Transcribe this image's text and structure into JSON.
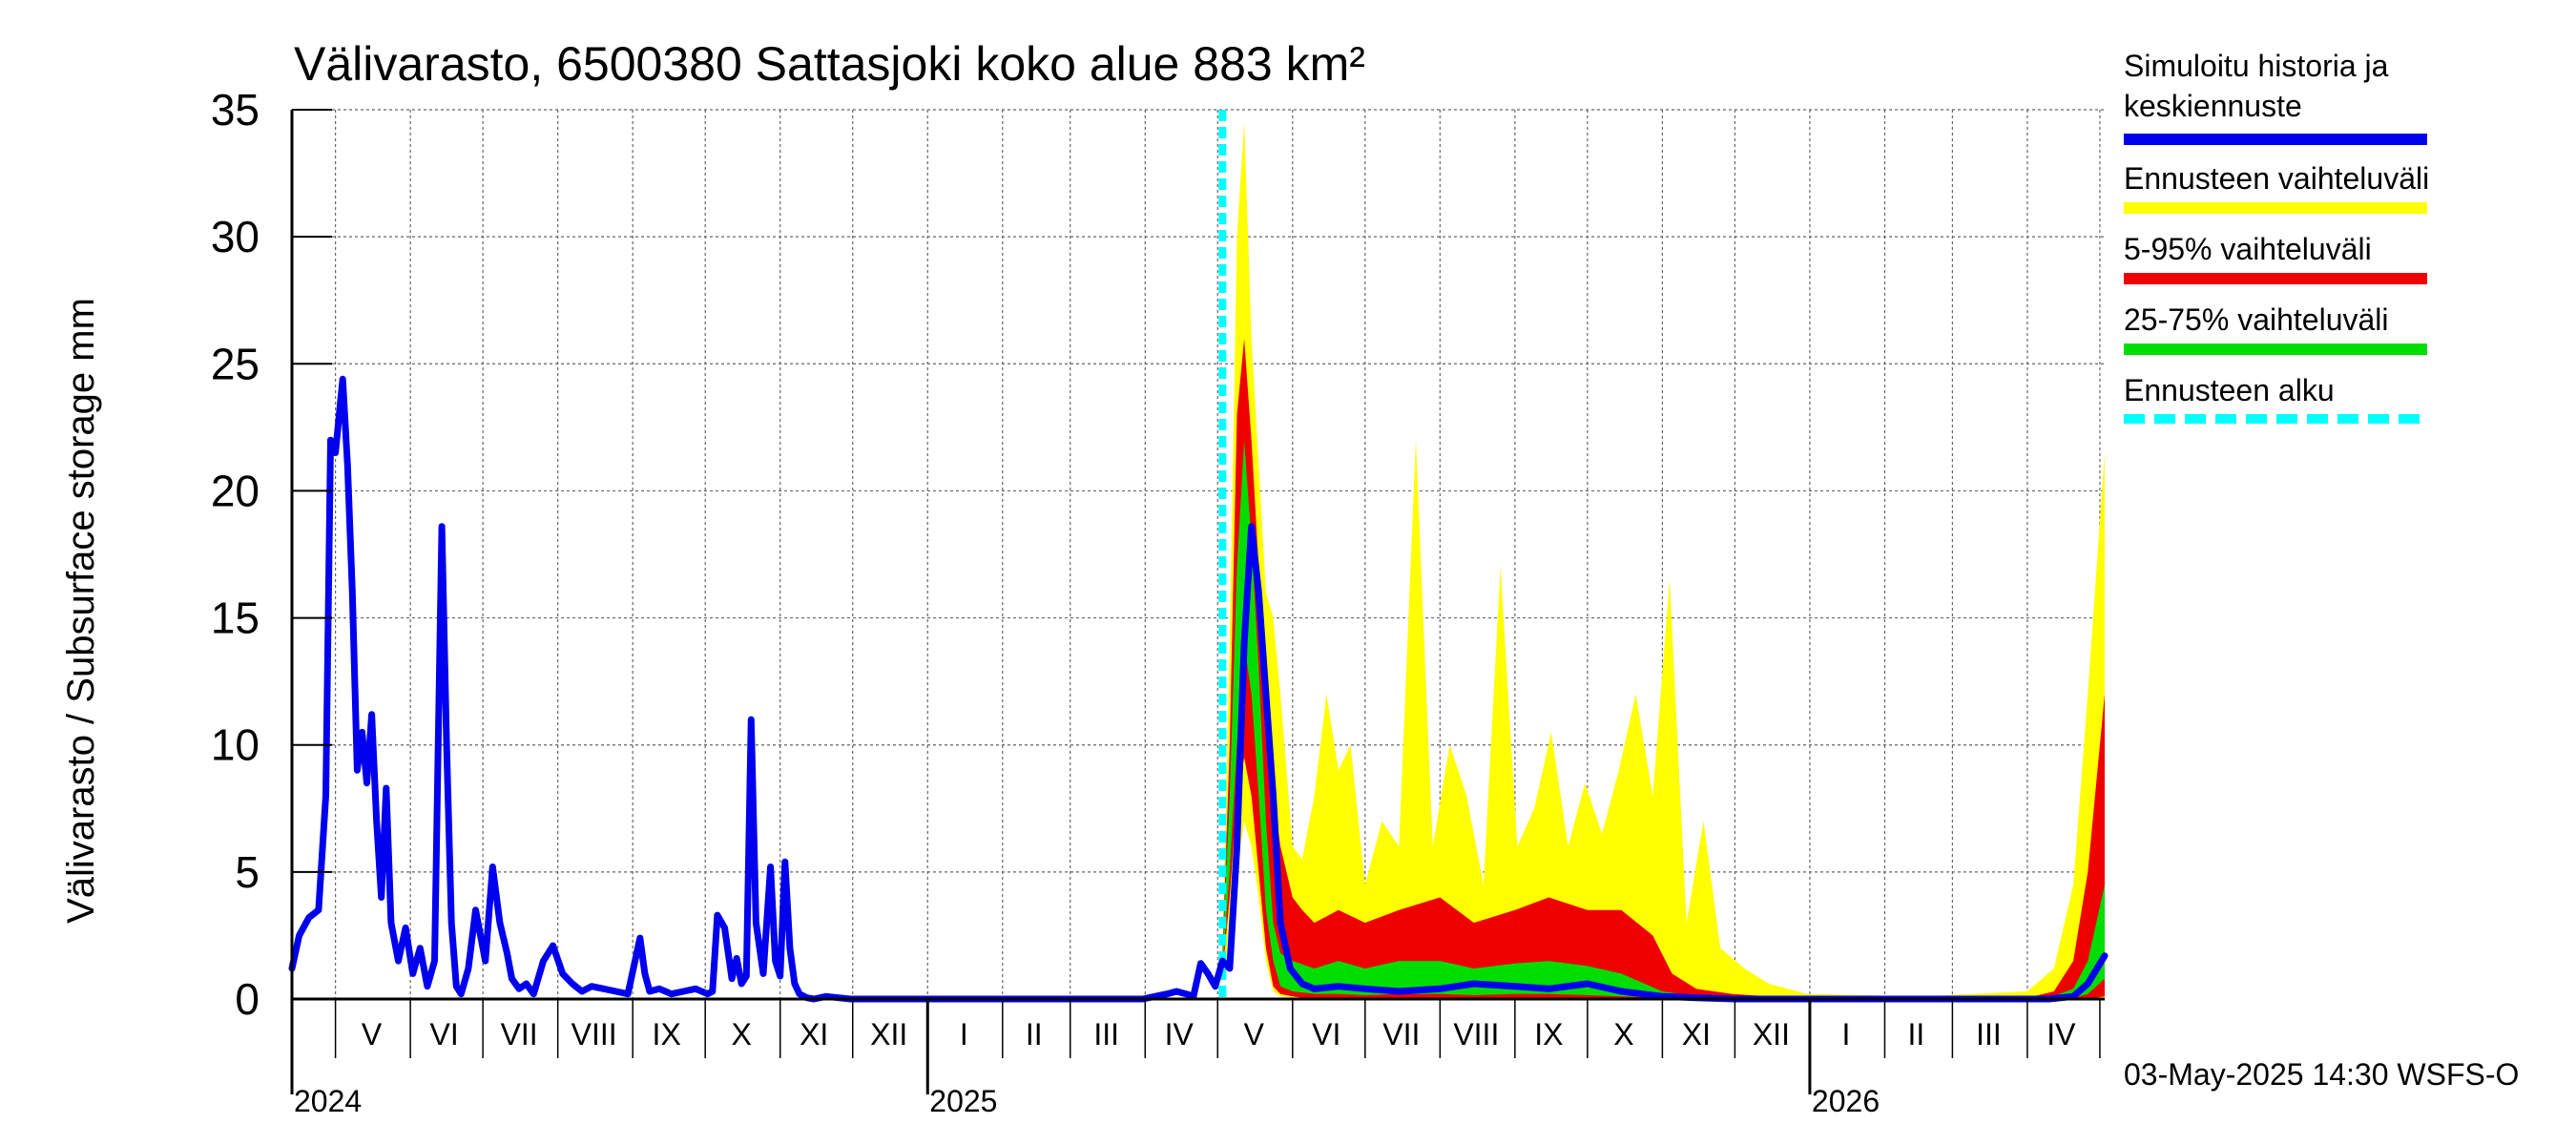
{
  "chart_data": {
    "type": "area",
    "title": "Välivarasto, 6500380 Sattasjoki koko alue 883 km²",
    "ylabel": "Välivarasto / Subsurface storage  mm",
    "ylim": [
      0,
      35
    ],
    "yticks": [
      0,
      5,
      10,
      15,
      20,
      25,
      30,
      35
    ],
    "x_range": [
      "2024-04-13",
      "2026-05-03"
    ],
    "month_labels": [
      {
        "label": "V",
        "date": "2024-05-16"
      },
      {
        "label": "VI",
        "date": "2024-06-15"
      },
      {
        "label": "VII",
        "date": "2024-07-16"
      },
      {
        "label": "VIII",
        "date": "2024-08-16"
      },
      {
        "label": "IX",
        "date": "2024-09-15"
      },
      {
        "label": "X",
        "date": "2024-10-16"
      },
      {
        "label": "XI",
        "date": "2024-11-15"
      },
      {
        "label": "XII",
        "date": "2024-12-16"
      },
      {
        "label": "I",
        "date": "2025-01-16"
      },
      {
        "label": "II",
        "date": "2025-02-14"
      },
      {
        "label": "III",
        "date": "2025-03-16"
      },
      {
        "label": "IV",
        "date": "2025-04-15"
      },
      {
        "label": "V",
        "date": "2025-05-16"
      },
      {
        "label": "VI",
        "date": "2025-06-15"
      },
      {
        "label": "VII",
        "date": "2025-07-16"
      },
      {
        "label": "VIII",
        "date": "2025-08-16"
      },
      {
        "label": "IX",
        "date": "2025-09-15"
      },
      {
        "label": "X",
        "date": "2025-10-16"
      },
      {
        "label": "XI",
        "date": "2025-11-15"
      },
      {
        "label": "XII",
        "date": "2025-12-16"
      },
      {
        "label": "I",
        "date": "2026-01-16"
      },
      {
        "label": "II",
        "date": "2026-02-14"
      },
      {
        "label": "III",
        "date": "2026-03-16"
      },
      {
        "label": "IV",
        "date": "2026-04-15"
      }
    ],
    "year_labels": [
      {
        "label": "2024",
        "date": "2024-04-13"
      },
      {
        "label": "2025",
        "date": "2025-01-01"
      },
      {
        "label": "2026",
        "date": "2026-01-01"
      }
    ],
    "forecast_start": "2025-05-03",
    "grid": true,
    "legend_position": "right",
    "colors": {
      "history": "#0000ee",
      "range": "#ffff00",
      "p5_95": "#ee0000",
      "p25_75": "#00dd00",
      "forecast_start": "#00ffff"
    },
    "series": [
      {
        "name": "Simuloitu historia ja\nkeskiennuste",
        "kind": "line",
        "x": [
          "2024-04-13",
          "2024-04-16",
          "2024-04-20",
          "2024-04-24",
          "2024-04-27",
          "2024-04-29",
          "2024-05-01",
          "2024-05-04",
          "2024-05-06",
          "2024-05-08",
          "2024-05-10",
          "2024-05-12",
          "2024-05-14",
          "2024-05-16",
          "2024-05-18",
          "2024-05-20",
          "2024-05-22",
          "2024-05-24",
          "2024-05-27",
          "2024-05-30",
          "2024-06-02",
          "2024-06-05",
          "2024-06-08",
          "2024-06-11",
          "2024-06-14",
          "2024-06-16",
          "2024-06-18",
          "2024-06-20",
          "2024-06-22",
          "2024-06-25",
          "2024-06-28",
          "2024-07-02",
          "2024-07-05",
          "2024-07-08",
          "2024-07-11",
          "2024-07-13",
          "2024-07-16",
          "2024-07-19",
          "2024-07-22",
          "2024-07-26",
          "2024-07-30",
          "2024-08-03",
          "2024-08-07",
          "2024-08-11",
          "2024-08-15",
          "2024-08-20",
          "2024-08-25",
          "2024-08-30",
          "2024-09-04",
          "2024-09-06",
          "2024-09-08",
          "2024-09-12",
          "2024-09-17",
          "2024-09-22",
          "2024-09-27",
          "2024-10-02",
          "2024-10-04",
          "2024-10-06",
          "2024-10-09",
          "2024-10-12",
          "2024-10-14",
          "2024-10-16",
          "2024-10-18",
          "2024-10-20",
          "2024-10-22",
          "2024-10-25",
          "2024-10-28",
          "2024-10-30",
          "2024-11-01",
          "2024-11-03",
          "2024-11-05",
          "2024-11-07",
          "2024-11-09",
          "2024-11-12",
          "2024-11-15",
          "2024-11-20",
          "2024-11-30",
          "2024-12-31",
          "2025-02-28",
          "2025-03-31",
          "2025-04-05",
          "2025-04-10",
          "2025-04-14",
          "2025-04-18",
          "2025-04-21",
          "2025-04-24",
          "2025-04-27",
          "2025-04-30",
          "2025-05-03",
          "2025-05-06",
          "2025-05-09",
          "2025-05-12",
          "2025-05-15",
          "2025-05-18",
          "2025-05-21",
          "2025-05-24",
          "2025-05-27",
          "2025-05-31",
          "2025-06-05",
          "2025-06-10",
          "2025-06-20",
          "2025-07-01",
          "2025-07-15",
          "2025-08-01",
          "2025-08-15",
          "2025-09-01",
          "2025-09-15",
          "2025-10-01",
          "2025-10-15",
          "2025-11-01",
          "2025-11-15",
          "2025-12-01",
          "2025-12-20",
          "2026-01-15",
          "2026-03-01",
          "2026-04-10",
          "2026-04-20",
          "2026-04-26",
          "2026-05-03"
        ],
        "values": [
          1.2,
          2.5,
          3.2,
          3.5,
          8.0,
          22.0,
          21.5,
          24.4,
          21.0,
          16.0,
          9.0,
          10.5,
          8.5,
          11.2,
          7.0,
          4.0,
          8.3,
          3.0,
          1.5,
          2.8,
          1.0,
          2.0,
          0.5,
          1.5,
          18.6,
          10.0,
          3.0,
          0.5,
          0.2,
          1.2,
          3.5,
          1.5,
          5.2,
          3.0,
          1.8,
          0.8,
          0.4,
          0.6,
          0.2,
          1.5,
          2.1,
          1.0,
          0.6,
          0.3,
          0.5,
          0.4,
          0.3,
          0.2,
          2.4,
          1.0,
          0.3,
          0.4,
          0.2,
          0.3,
          0.4,
          0.2,
          0.3,
          3.3,
          2.8,
          0.8,
          1.6,
          0.6,
          0.9,
          11.0,
          3.0,
          1.0,
          5.2,
          1.5,
          0.9,
          5.4,
          2.0,
          0.6,
          0.2,
          0.05,
          0.0,
          0.1,
          0.0,
          0.0,
          0.0,
          0.0,
          0.1,
          0.2,
          0.3,
          0.2,
          0.1,
          1.4,
          1.0,
          0.5,
          1.5,
          1.2,
          6.0,
          14.0,
          18.6,
          16.0,
          12.0,
          8.0,
          3.0,
          1.2,
          0.6,
          0.4,
          0.5,
          0.4,
          0.3,
          0.4,
          0.6,
          0.5,
          0.4,
          0.6,
          0.3,
          0.1,
          0.05,
          0.0,
          0.0,
          0.0,
          0.0,
          0.0,
          0.1,
          0.6,
          1.7
        ]
      },
      {
        "name": "Ennusteen vaihteluväli",
        "kind": "band",
        "x": [
          "2025-05-03",
          "2025-05-06",
          "2025-05-09",
          "2025-05-12",
          "2025-05-15",
          "2025-05-18",
          "2025-05-21",
          "2025-05-24",
          "2025-05-27",
          "2025-06-01",
          "2025-06-05",
          "2025-06-10",
          "2025-06-15",
          "2025-06-20",
          "2025-06-25",
          "2025-07-01",
          "2025-07-08",
          "2025-07-15",
          "2025-07-22",
          "2025-07-29",
          "2025-08-05",
          "2025-08-12",
          "2025-08-19",
          "2025-08-26",
          "2025-09-02",
          "2025-09-09",
          "2025-09-16",
          "2025-09-23",
          "2025-09-30",
          "2025-10-07",
          "2025-10-14",
          "2025-10-21",
          "2025-10-28",
          "2025-11-04",
          "2025-11-11",
          "2025-11-18",
          "2025-11-25",
          "2025-12-05",
          "2025-12-15",
          "2025-12-31",
          "2026-02-15",
          "2026-04-01",
          "2026-04-12",
          "2026-04-20",
          "2026-04-26",
          "2026-05-03"
        ],
        "low": [
          0.8,
          2.0,
          5.0,
          7.0,
          6.0,
          4.0,
          1.5,
          0.3,
          0.1,
          0.05,
          0.0,
          0.0,
          0.0,
          0.0,
          0.0,
          0.0,
          0.0,
          0.0,
          0.0,
          0.0,
          0.0,
          0.0,
          0.0,
          0.0,
          0.0,
          0.0,
          0.0,
          0.0,
          0.0,
          0.0,
          0.0,
          0.0,
          0.0,
          0.0,
          0.0,
          0.0,
          0.0,
          0.0,
          0.0,
          0.0,
          0.0,
          0.0,
          0.0,
          0.0,
          0.0,
          0.0
        ],
        "high": [
          2.0,
          14.0,
          30.0,
          34.5,
          26.0,
          21.0,
          16.0,
          15.0,
          12.0,
          6.0,
          5.5,
          8.0,
          12.0,
          9.0,
          10.0,
          4.5,
          7.0,
          6.0,
          22.0,
          6.0,
          10.0,
          8.0,
          4.5,
          17.0,
          6.0,
          7.5,
          10.5,
          6.0,
          8.5,
          6.5,
          9.0,
          12.0,
          8.0,
          16.5,
          3.0,
          7.0,
          2.0,
          1.2,
          0.6,
          0.2,
          0.1,
          0.3,
          1.2,
          4.5,
          12.0,
          21.5
        ]
      },
      {
        "name": "5-95% vaihteluväli",
        "kind": "band",
        "x": [
          "2025-05-03",
          "2025-05-06",
          "2025-05-09",
          "2025-05-12",
          "2025-05-15",
          "2025-05-18",
          "2025-05-21",
          "2025-05-24",
          "2025-05-27",
          "2025-06-01",
          "2025-06-05",
          "2025-06-10",
          "2025-06-20",
          "2025-07-01",
          "2025-07-15",
          "2025-08-01",
          "2025-08-15",
          "2025-09-01",
          "2025-09-15",
          "2025-10-01",
          "2025-10-15",
          "2025-10-28",
          "2025-11-05",
          "2025-11-15",
          "2025-11-30",
          "2025-12-15",
          "2025-12-31",
          "2026-04-01",
          "2026-04-12",
          "2026-04-20",
          "2026-04-26",
          "2026-05-03"
        ],
        "low": [
          1.0,
          4.0,
          8.0,
          9.5,
          8.0,
          5.0,
          2.0,
          0.5,
          0.2,
          0.1,
          0.05,
          0.05,
          0.05,
          0.05,
          0.05,
          0.05,
          0.05,
          0.05,
          0.05,
          0.05,
          0.05,
          0.02,
          0.0,
          0.0,
          0.0,
          0.0,
          0.0,
          0.0,
          0.0,
          0.0,
          0.0,
          0.1
        ],
        "high": [
          1.8,
          10.0,
          23.0,
          26.0,
          22.0,
          17.0,
          12.0,
          8.0,
          6.0,
          4.0,
          3.5,
          3.0,
          3.5,
          3.0,
          3.5,
          4.0,
          3.0,
          3.5,
          4.0,
          3.5,
          3.5,
          2.5,
          1.0,
          0.4,
          0.2,
          0.1,
          0.05,
          0.05,
          0.3,
          1.5,
          5.0,
          12.0
        ]
      },
      {
        "name": "25-75% vaihteluväli",
        "kind": "band",
        "x": [
          "2025-05-03",
          "2025-05-06",
          "2025-05-09",
          "2025-05-12",
          "2025-05-15",
          "2025-05-18",
          "2025-05-21",
          "2025-05-24",
          "2025-05-27",
          "2025-06-01",
          "2025-06-10",
          "2025-06-20",
          "2025-07-01",
          "2025-07-15",
          "2025-08-01",
          "2025-08-15",
          "2025-09-01",
          "2025-09-15",
          "2025-10-01",
          "2025-10-15",
          "2025-11-01",
          "2025-11-15",
          "2025-12-01",
          "2026-04-10",
          "2026-04-20",
          "2026-04-26",
          "2026-05-03"
        ],
        "low": [
          1.2,
          5.0,
          10.0,
          14.0,
          12.0,
          8.0,
          3.5,
          1.5,
          0.5,
          0.3,
          0.2,
          0.2,
          0.15,
          0.2,
          0.2,
          0.15,
          0.2,
          0.2,
          0.15,
          0.1,
          0.05,
          0.0,
          0.0,
          0.0,
          0.05,
          0.2,
          0.8
        ],
        "high": [
          1.6,
          8.0,
          17.0,
          22.0,
          18.0,
          13.0,
          7.0,
          3.0,
          1.8,
          1.5,
          1.2,
          1.5,
          1.2,
          1.5,
          1.5,
          1.2,
          1.4,
          1.5,
          1.3,
          1.0,
          0.3,
          0.1,
          0.05,
          0.05,
          0.4,
          1.5,
          4.5
        ]
      }
    ]
  },
  "legend": [
    {
      "label": "Simuloitu historia ja\nkeskiennuste",
      "color": "#0000ee",
      "dashed": false
    },
    {
      "label": "Ennusteen vaihteluväli",
      "color": "#ffff00",
      "dashed": false
    },
    {
      "label": "5-95% vaihteluväli",
      "color": "#ee0000",
      "dashed": false
    },
    {
      "label": "25-75% vaihteluväli",
      "color": "#00dd00",
      "dashed": false
    },
    {
      "label": "Ennusteen alku",
      "color": "#00ffff",
      "dashed": true
    }
  ],
  "footer": "03-May-2025 14:30 WSFS-O"
}
